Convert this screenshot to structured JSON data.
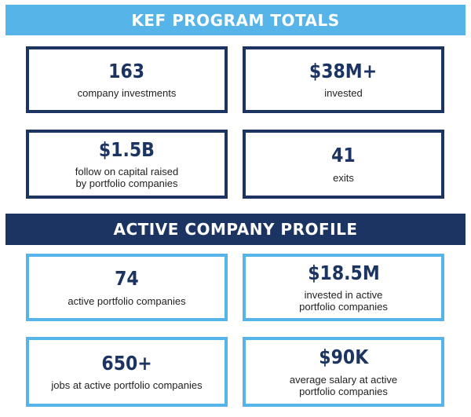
{
  "program_totals": {
    "heading": "KEF PROGRAM TOTALS",
    "stats": [
      {
        "value": "163",
        "label": "company investments"
      },
      {
        "value": "$38M+",
        "label": "invested"
      },
      {
        "value": "$1.5B",
        "label": "follow on capital raised\nby portfolio companies"
      },
      {
        "value": "41",
        "label": "exits"
      }
    ]
  },
  "active_profile": {
    "heading": "ACTIVE COMPANY PROFILE",
    "stats": [
      {
        "value": "74",
        "label": "active portfolio companies"
      },
      {
        "value": "$18.5M",
        "label": "invested in active\nportfolio companies"
      },
      {
        "value": "650+",
        "label": "jobs at active portfolio companies"
      },
      {
        "value": "$90K",
        "label": "average salary at active\nportfolio companies"
      }
    ]
  },
  "colors": {
    "navy": "#1c3461",
    "sky_blue": "#56b4e9"
  }
}
